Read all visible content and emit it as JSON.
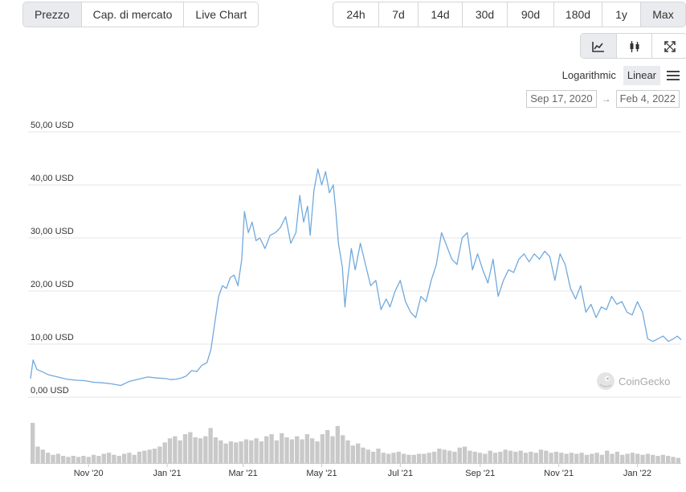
{
  "metric_tabs": [
    {
      "label": "Prezzo",
      "active": true
    },
    {
      "label": "Cap. di mercato",
      "active": false
    },
    {
      "label": "Live Chart",
      "active": false
    }
  ],
  "range_tabs": [
    {
      "label": "24h",
      "active": false
    },
    {
      "label": "7d",
      "active": false
    },
    {
      "label": "14d",
      "active": false
    },
    {
      "label": "30d",
      "active": false
    },
    {
      "label": "90d",
      "active": false
    },
    {
      "label": "180d",
      "active": false
    },
    {
      "label": "1y",
      "active": false
    },
    {
      "label": "Max",
      "active": true
    }
  ],
  "chart_type_icons": [
    {
      "icon": "line-chart-icon",
      "active": true
    },
    {
      "icon": "candlestick-icon",
      "active": false
    },
    {
      "icon": "fullscreen-icon",
      "active": false
    }
  ],
  "scale": {
    "logarithmic": "Logarithmic",
    "linear": "Linear",
    "active": "linear"
  },
  "date_range": {
    "from": "Sep 17, 2020",
    "to": "Feb 4, 2022",
    "arrow": "→"
  },
  "watermark": {
    "text": "CoinGecko"
  },
  "colors": {
    "line": "#71a9dd",
    "volume": "#c9c9c9",
    "grid": "#e6e6e6",
    "active_button": "#e9ebee"
  },
  "chart_data": {
    "type": "line",
    "y_tick_labels": [
      "0,00 USD",
      "10,00 USD",
      "20,00 USD",
      "30,00 USD",
      "40,00 USD",
      "50,00 USD"
    ],
    "y_ticks": [
      0,
      10,
      20,
      30,
      40,
      50
    ],
    "ylim": [
      0,
      50
    ],
    "x_tick_labels": [
      "Nov '20",
      "Jan '21",
      "Mar '21",
      "May '21",
      "Jul '21",
      "Sep '21",
      "Nov '21",
      "Jan '22"
    ],
    "x_tick_dates": [
      "2020-11-01",
      "2021-01-01",
      "2021-03-01",
      "2021-05-01",
      "2021-07-01",
      "2021-09-01",
      "2021-11-01",
      "2022-01-01"
    ],
    "xlim": [
      "2020-09-17",
      "2022-02-04"
    ],
    "grid": true,
    "series": [
      {
        "x": [
          "2020-09-17",
          "2020-09-19",
          "2020-09-22",
          "2020-09-26",
          "2020-10-01",
          "2020-10-08",
          "2020-10-15",
          "2020-10-22",
          "2020-10-29",
          "2020-11-05",
          "2020-11-12",
          "2020-11-19",
          "2020-11-26",
          "2020-12-03",
          "2020-12-10",
          "2020-12-17",
          "2020-12-24",
          "2020-12-31",
          "2021-01-04",
          "2021-01-08",
          "2021-01-12",
          "2021-01-16",
          "2021-01-20",
          "2021-01-24",
          "2021-01-28",
          "2021-02-01",
          "2021-02-04",
          "2021-02-07",
          "2021-02-10",
          "2021-02-13",
          "2021-02-16",
          "2021-02-19",
          "2021-02-22",
          "2021-02-25",
          "2021-02-28",
          "2021-03-02",
          "2021-03-05",
          "2021-03-08",
          "2021-03-11",
          "2021-03-14",
          "2021-03-18",
          "2021-03-22",
          "2021-03-26",
          "2021-03-30",
          "2021-04-03",
          "2021-04-07",
          "2021-04-11",
          "2021-04-14",
          "2021-04-17",
          "2021-04-20",
          "2021-04-22",
          "2021-04-25",
          "2021-04-28",
          "2021-05-01",
          "2021-05-04",
          "2021-05-07",
          "2021-05-10",
          "2021-05-12",
          "2021-05-14",
          "2021-05-17",
          "2021-05-19",
          "2021-05-21",
          "2021-05-24",
          "2021-05-27",
          "2021-05-31",
          "2021-06-04",
          "2021-06-08",
          "2021-06-12",
          "2021-06-16",
          "2021-06-20",
          "2021-06-23",
          "2021-06-27",
          "2021-07-01",
          "2021-07-05",
          "2021-07-09",
          "2021-07-13",
          "2021-07-17",
          "2021-07-21",
          "2021-07-25",
          "2021-07-29",
          "2021-08-02",
          "2021-08-06",
          "2021-08-10",
          "2021-08-14",
          "2021-08-18",
          "2021-08-22",
          "2021-08-26",
          "2021-08-30",
          "2021-09-03",
          "2021-09-07",
          "2021-09-11",
          "2021-09-15",
          "2021-09-19",
          "2021-09-23",
          "2021-09-27",
          "2021-10-01",
          "2021-10-05",
          "2021-10-09",
          "2021-10-13",
          "2021-10-17",
          "2021-10-21",
          "2021-10-25",
          "2021-10-29",
          "2021-11-02",
          "2021-11-06",
          "2021-11-10",
          "2021-11-14",
          "2021-11-18",
          "2021-11-22",
          "2021-11-26",
          "2021-11-30",
          "2021-12-04",
          "2021-12-08",
          "2021-12-12",
          "2021-12-16",
          "2021-12-20",
          "2021-12-24",
          "2021-12-28",
          "2022-01-01",
          "2022-01-05",
          "2022-01-09",
          "2022-01-13",
          "2022-01-17",
          "2022-01-21",
          "2022-01-25",
          "2022-01-29",
          "2022-02-01",
          "2022-02-04"
        ],
        "y": [
          3.5,
          7.0,
          5.2,
          4.8,
          4.2,
          3.8,
          3.4,
          3.2,
          3.1,
          2.8,
          2.7,
          2.5,
          2.2,
          3.0,
          3.4,
          3.8,
          3.6,
          3.5,
          3.3,
          3.4,
          3.6,
          4.0,
          5.0,
          4.8,
          6.0,
          6.5,
          9.0,
          14.0,
          19.0,
          21.0,
          20.5,
          22.5,
          23.0,
          21.0,
          26.0,
          35.0,
          31.0,
          33.0,
          29.5,
          30.0,
          28.0,
          30.5,
          31.0,
          32.0,
          34.0,
          29.0,
          31.0,
          38.0,
          33.0,
          36.0,
          30.5,
          39.0,
          43.0,
          40.0,
          42.5,
          38.5,
          40.0,
          35.0,
          29.0,
          24.5,
          17.0,
          22.0,
          28.0,
          24.0,
          29.0,
          25.0,
          21.0,
          22.0,
          16.5,
          18.5,
          17.0,
          20.0,
          22.0,
          18.0,
          16.0,
          15.0,
          19.0,
          18.0,
          22.0,
          25.0,
          31.0,
          28.5,
          26.0,
          25.0,
          30.0,
          31.0,
          24.0,
          27.0,
          24.0,
          21.5,
          26.0,
          19.0,
          22.0,
          24.0,
          23.5,
          26.0,
          27.0,
          25.5,
          27.0,
          26.0,
          27.5,
          26.5,
          22.0,
          27.0,
          25.0,
          20.5,
          18.5,
          21.0,
          16.0,
          17.5,
          15.0,
          17.0,
          16.5,
          19.0,
          17.5,
          18.0,
          16.0,
          15.5,
          18.0,
          16.0,
          11.0,
          10.5,
          11.0,
          11.5,
          10.5,
          11.0,
          11.5,
          10.8
        ]
      }
    ],
    "volume": [
      3.9,
      1.6,
      1.3,
      1.0,
      0.8,
      0.9,
      0.7,
      0.6,
      0.7,
      0.6,
      0.7,
      0.6,
      0.8,
      0.7,
      0.9,
      1.0,
      0.8,
      0.7,
      0.9,
      1.0,
      0.8,
      1.1,
      1.2,
      1.3,
      1.4,
      1.6,
      2.0,
      2.4,
      2.6,
      2.2,
      2.8,
      3.0,
      2.5,
      2.4,
      2.6,
      3.4,
      2.5,
      2.2,
      1.9,
      2.1,
      2.0,
      2.1,
      2.3,
      2.2,
      2.4,
      2.1,
      2.6,
      2.8,
      2.2,
      2.9,
      2.5,
      2.3,
      2.6,
      2.3,
      2.8,
      2.4,
      2.1,
      2.8,
      3.2,
      2.6,
      3.6,
      2.7,
      2.2,
      1.7,
      1.9,
      1.5,
      1.3,
      1.1,
      1.4,
      1.0,
      0.9,
      1.0,
      1.1,
      0.9,
      0.8,
      0.8,
      0.9,
      0.9,
      1.0,
      1.1,
      1.4,
      1.3,
      1.2,
      1.1,
      1.5,
      1.6,
      1.2,
      1.1,
      1.0,
      0.9,
      1.2,
      1.0,
      1.1,
      1.3,
      1.2,
      1.1,
      1.2,
      1.0,
      1.1,
      1.0,
      1.3,
      1.2,
      1.0,
      1.1,
      1.0,
      0.9,
      1.0,
      0.9,
      1.0,
      0.8,
      0.9,
      1.0,
      0.8,
      1.2,
      0.9,
      1.1,
      0.8,
      0.9,
      1.0,
      0.9,
      0.8,
      0.9,
      0.8,
      0.7,
      0.8,
      0.7,
      0.6,
      0.5
    ],
    "volume_unit": "relative"
  }
}
